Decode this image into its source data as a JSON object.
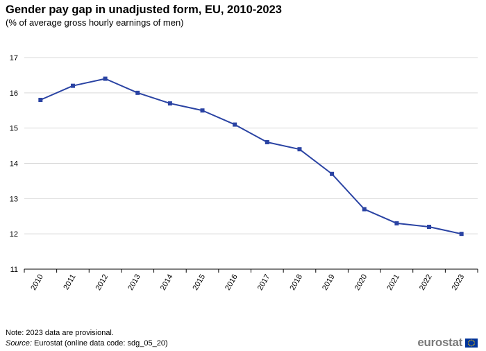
{
  "title": "Gender pay gap in unadjusted form, EU, 2010-2023",
  "subtitle": "(% of average gross hourly earnings of men)",
  "note": "Note: 2023 data are provisional.",
  "source": {
    "label": "Source:",
    "text": "Eurostat (online data code: sdg_05_20)"
  },
  "logo": {
    "text": "eurostat",
    "flag_icon": "eu-flag-icon"
  },
  "colors": {
    "line": "#2a43a3",
    "grid": "#d9d9d9",
    "axis": "#000000",
    "logo_text": "#7a7a7a",
    "flag": "#003399",
    "stars": "#ffcc00"
  },
  "chart_data": {
    "type": "line",
    "title": "Gender pay gap in unadjusted form, EU, 2010-2023",
    "subtitle": "(% of average gross hourly earnings of men)",
    "xlabel": "",
    "ylabel": "",
    "ylim": [
      11,
      17
    ],
    "yticks": [
      11,
      12,
      13,
      14,
      15,
      16,
      17
    ],
    "grid": true,
    "legend": "none",
    "categories": [
      "2010",
      "2011",
      "2012",
      "2013",
      "2014",
      "2015",
      "2016",
      "2017",
      "2018",
      "2019",
      "2020",
      "2021",
      "2022",
      "2023"
    ],
    "series": [
      {
        "name": "EU",
        "values": [
          15.8,
          16.2,
          16.4,
          16.0,
          15.7,
          15.5,
          15.1,
          14.6,
          14.4,
          13.7,
          12.7,
          12.3,
          12.2,
          12.0
        ]
      }
    ]
  }
}
